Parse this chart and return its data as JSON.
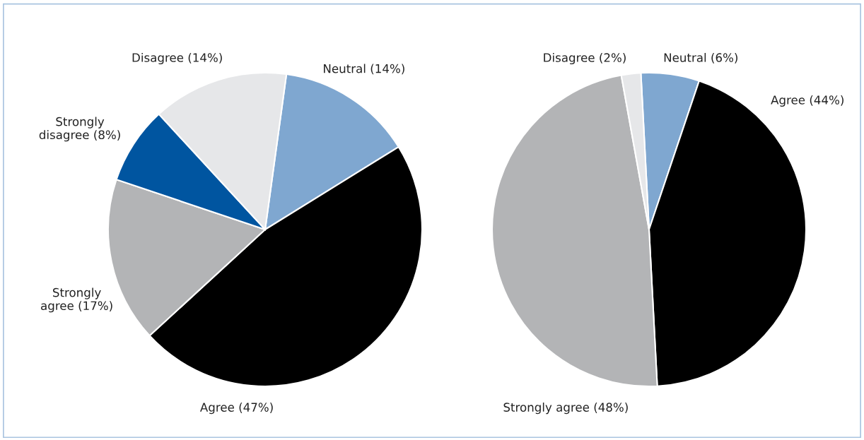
{
  "chart_data": [
    {
      "type": "pie",
      "categories": [
        "Neutral (14%)",
        "Agree (47%)",
        "Strongly\nagree (17%)",
        "Strongly\ndisagree (8%)",
        "Disagree (14%)"
      ],
      "values": [
        14,
        47,
        17,
        8,
        14
      ],
      "colors": [
        "#7fa7d0",
        "#000000",
        "#b3b4b6",
        "#0055a0",
        "#e6e7e9"
      ]
    },
    {
      "type": "pie",
      "categories": [
        "Neutral (6%)",
        "Agree (44%)",
        "Strongly agree (48%)",
        "Disagree (2%)"
      ],
      "values": [
        6,
        44,
        48,
        2
      ],
      "colors": [
        "#7fa7d0",
        "#000000",
        "#b3b4b6",
        "#e6e7e9"
      ]
    }
  ]
}
